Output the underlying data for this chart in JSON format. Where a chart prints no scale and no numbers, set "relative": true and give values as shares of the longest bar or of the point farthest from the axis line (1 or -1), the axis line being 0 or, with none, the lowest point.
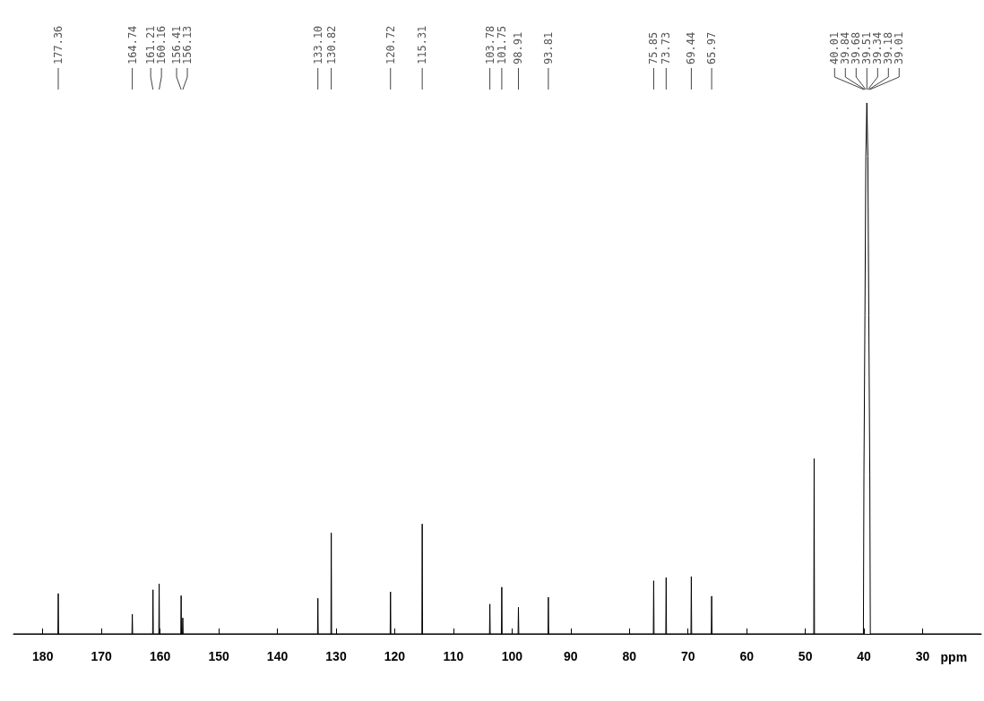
{
  "chart_data": {
    "type": "line",
    "relative": true,
    "color": "#000000",
    "xlabel": "ppm",
    "xlim": [
      185,
      20
    ],
    "xticks": [
      180,
      170,
      160,
      150,
      140,
      130,
      120,
      110,
      100,
      90,
      80,
      70,
      60,
      50,
      40,
      30
    ],
    "x": [
      185,
      177.42,
      177.36,
      177.3,
      164.8,
      164.74,
      164.68,
      161.27,
      161.21,
      161.15,
      160.22,
      160.16,
      160.1,
      156.47,
      156.41,
      156.35,
      156.19,
      156.13,
      156.07,
      133.16,
      133.1,
      133.04,
      130.88,
      130.82,
      130.76,
      120.78,
      120.72,
      120.66,
      115.37,
      115.31,
      115.25,
      103.84,
      103.78,
      103.72,
      101.81,
      101.75,
      101.69,
      98.97,
      98.91,
      98.85,
      93.87,
      93.81,
      93.75,
      75.91,
      75.85,
      75.79,
      73.79,
      73.73,
      73.67,
      69.5,
      69.44,
      69.38,
      66.03,
      65.97,
      65.91,
      48.56,
      48.5,
      48.44,
      40.1,
      40.01,
      39.84,
      39.68,
      39.51,
      39.34,
      39.18,
      39.01,
      38.92,
      20
    ],
    "values": [
      0,
      0,
      0.076,
      0,
      0,
      0.037,
      0,
      0,
      0.083,
      0,
      0,
      0.094,
      0,
      0,
      0.072,
      0,
      0,
      0.03,
      0,
      0,
      0.067,
      0,
      0,
      0.19,
      0,
      0,
      0.079,
      0,
      0,
      0.207,
      0,
      0,
      0.056,
      0,
      0,
      0.088,
      0,
      0,
      0.05,
      0,
      0,
      0.069,
      0,
      0,
      0.1,
      0,
      0,
      0.106,
      0,
      0,
      0.108,
      0,
      0,
      0.071,
      0,
      0,
      0.33,
      0,
      0,
      0.3,
      0.6,
      0.9,
      1,
      0.9,
      0.6,
      0.3,
      0,
      0
    ],
    "annotations": [
      {
        "text": "177.36",
        "x": 177.36
      },
      {
        "text": "164.74",
        "x": 164.74
      },
      {
        "text": "161.21",
        "x": 161.21
      },
      {
        "text": "160.16",
        "x": 160.16
      },
      {
        "text": "156.41",
        "x": 156.41
      },
      {
        "text": "156.13",
        "x": 156.13
      },
      {
        "text": "133.10",
        "x": 133.1
      },
      {
        "text": "130.82",
        "x": 130.82
      },
      {
        "text": "120.72",
        "x": 120.72
      },
      {
        "text": "115.31",
        "x": 115.31
      },
      {
        "text": "103.78",
        "x": 103.78
      },
      {
        "text": "101.75",
        "x": 101.75
      },
      {
        "text": "98.91",
        "x": 98.91
      },
      {
        "text": "93.81",
        "x": 93.81
      },
      {
        "text": "75.85",
        "x": 75.85
      },
      {
        "text": "73.73",
        "x": 73.73
      },
      {
        "text": "69.44",
        "x": 69.44
      },
      {
        "text": "65.97",
        "x": 65.97
      },
      {
        "text": "40.01",
        "x": 40.01
      },
      {
        "text": "39.84",
        "x": 39.84
      },
      {
        "text": "39.68",
        "x": 39.68
      },
      {
        "text": "39.51",
        "x": 39.51
      },
      {
        "text": "39.34",
        "x": 39.34
      },
      {
        "text": "39.18",
        "x": 39.18
      },
      {
        "text": "39.01",
        "x": 39.01
      }
    ]
  }
}
